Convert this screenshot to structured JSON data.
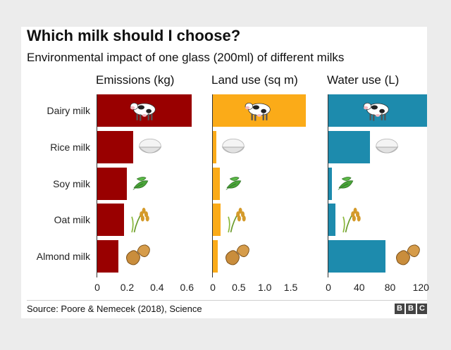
{
  "title": "Which milk should I choose?",
  "subtitle": "Environmental impact of one glass (200ml) of different milks",
  "source": "Source: Poore & Nemecek (2018), Science",
  "brand": [
    "B",
    "B",
    "C"
  ],
  "colors": {
    "emissions": "#990000",
    "land": "#fbab18",
    "water": "#1d8bad"
  },
  "chart_data": {
    "type": "bar",
    "orientation": "horizontal",
    "categories": [
      "Dairy milk",
      "Rice milk",
      "Soy milk",
      "Oat milk",
      "Almond milk"
    ],
    "category_icons": [
      "cow-icon",
      "rice-bowl-icon",
      "soy-leaf-icon",
      "oat-stalk-icon",
      "peanut-icon"
    ],
    "panels": [
      {
        "name": "Emissions (kg)",
        "values": [
          0.63,
          0.24,
          0.2,
          0.18,
          0.14
        ],
        "xlim": [
          0,
          0.66
        ],
        "ticks": [
          "0",
          "0.2",
          "0.4",
          "0.6"
        ],
        "tick_values": [
          0,
          0.2,
          0.4,
          0.6
        ]
      },
      {
        "name": "Land use (sq m)",
        "values": [
          1.79,
          0.07,
          0.13,
          0.15,
          0.1
        ],
        "xlim": [
          0,
          1.9
        ],
        "ticks": [
          "0",
          "0.5",
          "1.0",
          "1.5"
        ],
        "tick_values": [
          0,
          0.5,
          1.0,
          1.5
        ]
      },
      {
        "name": "Water use (L)",
        "values": [
          128,
          54,
          5,
          9,
          74
        ],
        "xlim": [
          0,
          128
        ],
        "ticks": [
          "0",
          "40",
          "80",
          "120"
        ],
        "tick_values": [
          0,
          40,
          80,
          120
        ]
      }
    ]
  }
}
